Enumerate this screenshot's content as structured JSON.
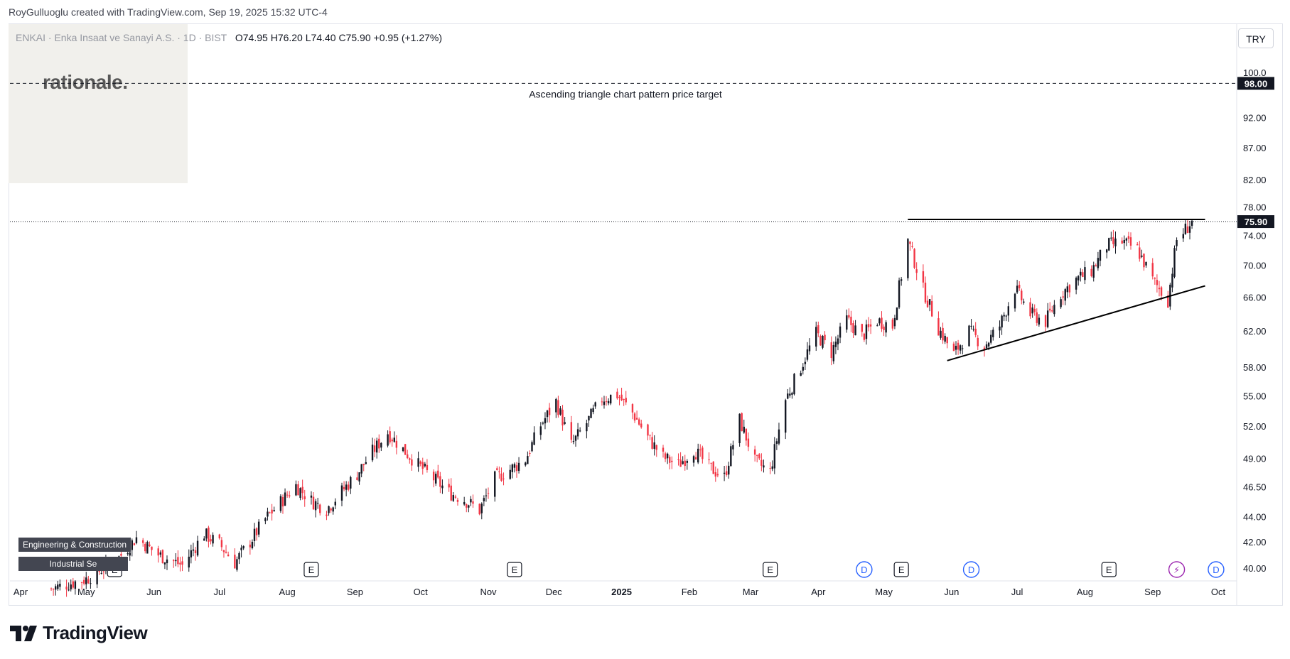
{
  "header": {
    "attribution": "RoyGulluoglu created with TradingView.com, Sep 19, 2025 15:32 UTC-4"
  },
  "branding": {
    "watermark_logo": "rationale.",
    "footer_logo": "TradingView",
    "footer_icon": "tradingview-logo-icon"
  },
  "symbol": {
    "name": "ENKAI · Enka Insaat ve Sanayi A.S. · 1D · BIST",
    "open": "O74.95",
    "high": "H76.20",
    "low": "L74.40",
    "close": "C75.90",
    "change": "+0.95 (+1.27%)"
  },
  "currency": "TRY",
  "sector_tags": [
    "Engineering & Construction",
    "Industrial Se"
  ],
  "colors": {
    "up": "#131722",
    "down": "#f23645",
    "dividend": "#2962ff",
    "split": "#9c27b0"
  },
  "chart_data": {
    "type": "candlestick",
    "annotation": "Ascending triangle chart pattern price target",
    "target_price": 98.0,
    "target_price_label": "98.00",
    "last_price": 75.9,
    "last_price_label": "75.90",
    "y_ticks": [
      "100.0",
      "92.00",
      "87.00",
      "82.00",
      "78.00",
      "74.00",
      "70.00",
      "66.00",
      "62.00",
      "58.00",
      "55.00",
      "52.00",
      "49.00",
      "46.50",
      "44.00",
      "42.00",
      "40.00"
    ],
    "x_ticks": [
      "Apr",
      "May",
      "Jun",
      "Jul",
      "Aug",
      "Sep",
      "Oct",
      "Nov",
      "Dec",
      "2025",
      "Feb",
      "Mar",
      "Apr",
      "May",
      "Jun",
      "Jul",
      "Aug",
      "Sep",
      "Oct"
    ],
    "y_scale": "log",
    "resistance_line": {
      "price": 76.2,
      "from": "2025-05-12",
      "to": "2025-09-25"
    },
    "support_line": {
      "from": {
        "date": "2025-05-30",
        "price": 58.7
      },
      "to": {
        "date": "2025-09-25",
        "price": 67.4
      }
    },
    "event_markers": [
      {
        "type": "E",
        "date": "2024-05-14",
        "label": "E"
      },
      {
        "type": "E",
        "date": "2024-08-12",
        "label": "E"
      },
      {
        "type": "E",
        "date": "2024-11-13",
        "label": "E"
      },
      {
        "type": "E",
        "date": "2025-03-10",
        "label": "E"
      },
      {
        "type": "D",
        "date": "2025-04-22",
        "label": "D"
      },
      {
        "type": "E",
        "date": "2025-05-09",
        "label": "E"
      },
      {
        "type": "D",
        "date": "2025-06-10",
        "label": "D"
      },
      {
        "type": "E",
        "date": "2025-08-12",
        "label": "E"
      },
      {
        "type": "split",
        "date": "2025-09-12",
        "label": "⚡"
      },
      {
        "type": "D",
        "date": "2025-09-30",
        "label": "D"
      }
    ],
    "price_path": [
      [
        "2024-04-15",
        38.5
      ],
      [
        "2024-05-01",
        39.2
      ],
      [
        "2024-05-15",
        40.6
      ],
      [
        "2024-05-24",
        42.3
      ],
      [
        "2024-06-03",
        41.0
      ],
      [
        "2024-06-14",
        40.2
      ],
      [
        "2024-06-24",
        42.6
      ],
      [
        "2024-07-01",
        41.8
      ],
      [
        "2024-07-08",
        40.4
      ],
      [
        "2024-07-15",
        42.0
      ],
      [
        "2024-07-22",
        43.8
      ],
      [
        "2024-07-29",
        45.2
      ],
      [
        "2024-08-05",
        46.6
      ],
      [
        "2024-08-12",
        45.3
      ],
      [
        "2024-08-19",
        44.6
      ],
      [
        "2024-08-26",
        46.1
      ],
      [
        "2024-09-02",
        47.6
      ],
      [
        "2024-09-09",
        49.6
      ],
      [
        "2024-09-16",
        51.4
      ],
      [
        "2024-09-23",
        49.8
      ],
      [
        "2024-09-30",
        48.4
      ],
      [
        "2024-10-07",
        47.2
      ],
      [
        "2024-10-14",
        46.0
      ],
      [
        "2024-10-21",
        45.4
      ],
      [
        "2024-10-28",
        44.5
      ],
      [
        "2024-11-04",
        47.2
      ],
      [
        "2024-11-11",
        48.0
      ],
      [
        "2024-11-18",
        48.9
      ],
      [
        "2024-11-25",
        52.1
      ],
      [
        "2024-12-02",
        54.4
      ],
      [
        "2024-12-09",
        50.2
      ],
      [
        "2024-12-16",
        52.3
      ],
      [
        "2024-12-23",
        54.7
      ],
      [
        "2024-12-30",
        55.1
      ],
      [
        "2025-01-06",
        53.3
      ],
      [
        "2025-01-13",
        50.9
      ],
      [
        "2025-01-20",
        49.1
      ],
      [
        "2025-01-27",
        48.4
      ],
      [
        "2025-02-03",
        49.8
      ],
      [
        "2025-02-10",
        48.2
      ],
      [
        "2025-02-17",
        47.3
      ],
      [
        "2025-02-24",
        52.6
      ],
      [
        "2025-03-03",
        48.7
      ],
      [
        "2025-03-10",
        47.8
      ],
      [
        "2025-03-17",
        54.6
      ],
      [
        "2025-03-24",
        58.0
      ],
      [
        "2025-03-31",
        61.7
      ],
      [
        "2025-04-07",
        59.6
      ],
      [
        "2025-04-14",
        63.3
      ],
      [
        "2025-04-21",
        61.4
      ],
      [
        "2025-04-28",
        63.2
      ],
      [
        "2025-05-05",
        62.6
      ],
      [
        "2025-05-12",
        73.3
      ],
      [
        "2025-05-19",
        66.9
      ],
      [
        "2025-05-26",
        62.3
      ],
      [
        "2025-06-02",
        59.4
      ],
      [
        "2025-06-09",
        62.0
      ],
      [
        "2025-06-16",
        60.3
      ],
      [
        "2025-06-23",
        62.6
      ],
      [
        "2025-06-30",
        67.1
      ],
      [
        "2025-07-07",
        64.0
      ],
      [
        "2025-07-14",
        63.1
      ],
      [
        "2025-07-21",
        66.4
      ],
      [
        "2025-07-28",
        68.2
      ],
      [
        "2025-08-04",
        69.3
      ],
      [
        "2025-08-11",
        72.6
      ],
      [
        "2025-08-18",
        73.1
      ],
      [
        "2025-08-25",
        72.1
      ],
      [
        "2025-09-01",
        68.1
      ],
      [
        "2025-09-08",
        65.6
      ],
      [
        "2025-09-12",
        73.4
      ],
      [
        "2025-09-19",
        75.9
      ]
    ]
  }
}
